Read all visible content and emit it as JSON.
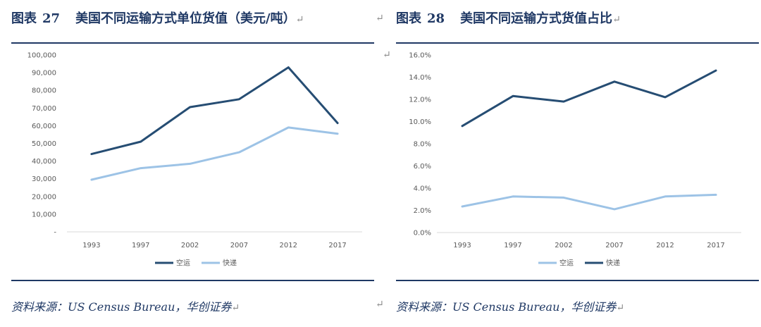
{
  "left": {
    "fig_label": "图表",
    "fig_num": "27",
    "title": "美国不同运输方式单位货值（美元/吨）",
    "source": "资料来源：US Census Bureau，华创证券"
  },
  "right": {
    "fig_label": "图表",
    "fig_num": "28",
    "title": "美国不同运输方式货值占比",
    "source": "资料来源：US Census Bureau，华创证券"
  },
  "return_mark": "↵",
  "chart_data": [
    {
      "type": "line",
      "title": "美国不同运输方式单位货值（美元/吨）",
      "categories": [
        "1993",
        "1997",
        "2002",
        "2007",
        "2012",
        "2017"
      ],
      "series": [
        {
          "name": "空运",
          "color": "#264d73",
          "values": [
            44000,
            51000,
            70500,
            75000,
            93000,
            61500
          ]
        },
        {
          "name": "快递",
          "color": "#9dc3e6",
          "values": [
            29500,
            36000,
            38500,
            45000,
            59000,
            55500
          ]
        }
      ],
      "ylim": [
        0,
        100000
      ],
      "yticks": [
        "-",
        "10,000",
        "20,000",
        "30,000",
        "40,000",
        "50,000",
        "60,000",
        "70,000",
        "80,000",
        "90,000",
        "100,000"
      ],
      "legend_order": [
        "空运",
        "快递"
      ],
      "legend_position": "bottom",
      "grid": false
    },
    {
      "type": "line",
      "title": "美国不同运输方式货值占比",
      "categories": [
        "1993",
        "1997",
        "2002",
        "2007",
        "2012",
        "2017"
      ],
      "series": [
        {
          "name": "空运",
          "color": "#9dc3e6",
          "values": [
            2.35,
            3.25,
            3.15,
            2.1,
            3.25,
            3.4
          ]
        },
        {
          "name": "快递",
          "color": "#264d73",
          "values": [
            9.6,
            12.3,
            11.8,
            13.6,
            12.2,
            14.6
          ]
        }
      ],
      "ylim": [
        0,
        16
      ],
      "yticks": [
        "0.0%",
        "2.0%",
        "4.0%",
        "6.0%",
        "8.0%",
        "10.0%",
        "12.0%",
        "14.0%",
        "16.0%"
      ],
      "legend_order": [
        "空运",
        "快递"
      ],
      "legend_position": "bottom",
      "grid": false
    }
  ]
}
